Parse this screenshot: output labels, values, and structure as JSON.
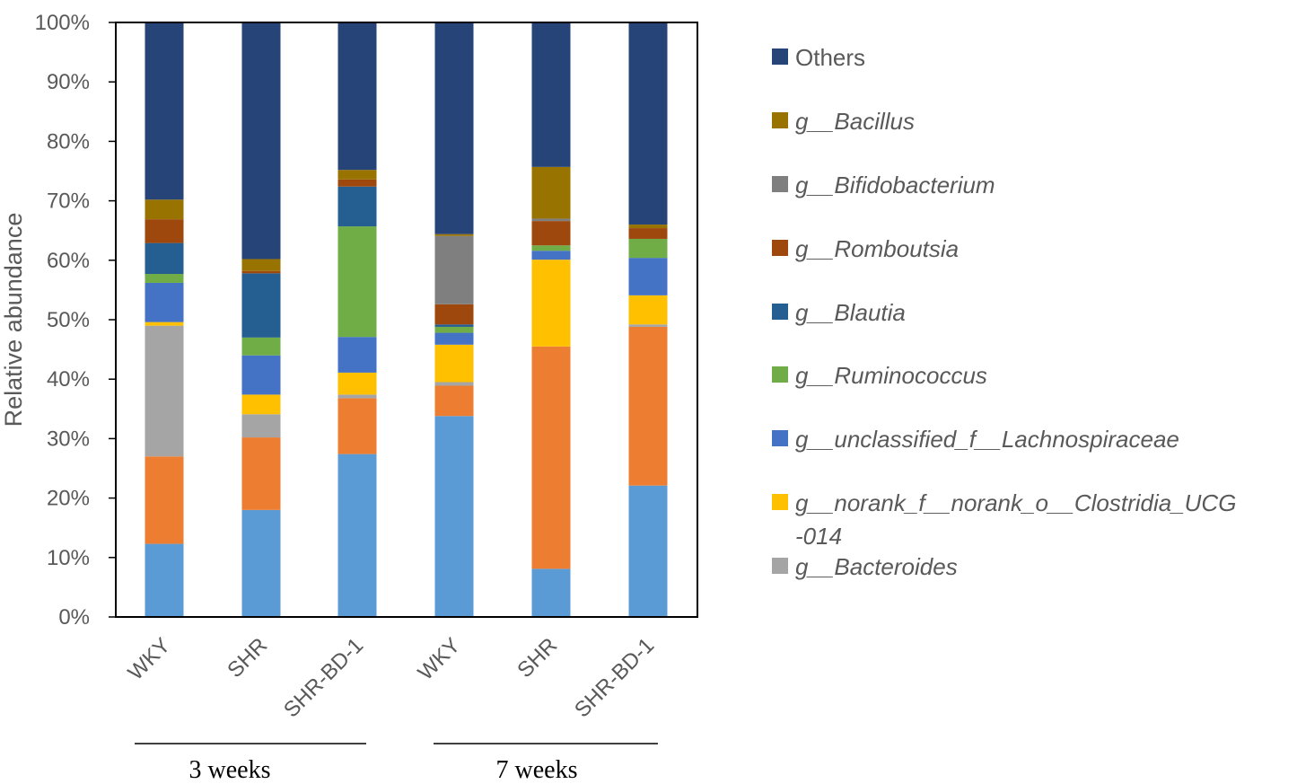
{
  "chart_data": {
    "type": "bar",
    "stacked": true,
    "ylabel": "Relative abundance",
    "ylim": [
      0,
      100
    ],
    "yticks": [
      "0%",
      "10%",
      "20%",
      "30%",
      "40%",
      "50%",
      "60%",
      "70%",
      "80%",
      "90%",
      "100%"
    ],
    "categories": [
      "WKY",
      "SHR",
      "SHR-BD-1",
      "WKY",
      "SHR",
      "SHR-BD-1"
    ],
    "groups": [
      {
        "label": "3 weeks",
        "categories": [
          0,
          1,
          2
        ]
      },
      {
        "label": "7 weeks",
        "categories": [
          3,
          4,
          5
        ]
      }
    ],
    "legend_position": "right",
    "series": [
      {
        "key": "s1",
        "color": "#5b9bd5",
        "values": [
          12.3,
          18.0,
          27.4,
          33.8,
          8.1,
          22.1
        ]
      },
      {
        "key": "s2",
        "color": "#ed7d31",
        "values": [
          14.7,
          12.2,
          9.4,
          5.1,
          37.4,
          26.7
        ]
      },
      {
        "name": "g__Bacteroides",
        "prefix": "g__",
        "italic": "Bacteroides",
        "color": "#a5a5a5",
        "values": [
          22.0,
          3.9,
          0.6,
          0.6,
          0.0,
          0.4
        ]
      },
      {
        "name": "g__norank_f__norank_o__Clostridia_UCG-014",
        "prefix": "g__",
        "italic": "norank_f__norank_o__Clostridia_UCG",
        "italic2": "-014",
        "color": "#ffc000",
        "values": [
          0.6,
          3.3,
          3.7,
          6.3,
          14.6,
          4.9
        ]
      },
      {
        "name": "g__unclassified_f__Lachnospiraceae",
        "prefix": "g__",
        "italic": "unclassified_f__Lachnospiraceae",
        "color": "#4472c4",
        "values": [
          6.6,
          6.6,
          6.0,
          2.0,
          1.5,
          6.3
        ]
      },
      {
        "name": "g__Ruminococcus",
        "prefix": "g__",
        "italic": "Ruminococcus",
        "color": "#70ad47",
        "values": [
          1.5,
          3.0,
          18.6,
          1.0,
          0.9,
          3.2
        ]
      },
      {
        "name": "g__Blautia",
        "prefix": "g__",
        "italic": "Blautia",
        "color": "#255e91",
        "values": [
          5.2,
          10.8,
          6.7,
          0.4,
          0.0,
          0.0
        ]
      },
      {
        "name": "g__Romboutsia",
        "prefix": "g__",
        "italic": "Romboutsia",
        "color": "#9e480e",
        "values": [
          4.0,
          0.4,
          1.2,
          3.4,
          4.1,
          1.8
        ]
      },
      {
        "name": "g__Bifidobacterium",
        "prefix": "g__",
        "italic": "Bifidobacterium",
        "color": "#7f7f7f",
        "values": [
          0.0,
          0.0,
          0.0,
          11.5,
          0.4,
          0.0
        ]
      },
      {
        "name": "g__Bacillus",
        "prefix": "g__",
        "italic": "Bacillus",
        "color": "#997300",
        "values": [
          3.3,
          2.0,
          1.6,
          0.3,
          8.7,
          0.6
        ]
      },
      {
        "name": "Others",
        "color": "#264478",
        "values": [
          29.8,
          39.8,
          24.8,
          35.6,
          24.3,
          34.0
        ]
      }
    ],
    "legend_order": [
      10,
      9,
      8,
      7,
      6,
      5,
      4,
      3,
      2
    ]
  }
}
